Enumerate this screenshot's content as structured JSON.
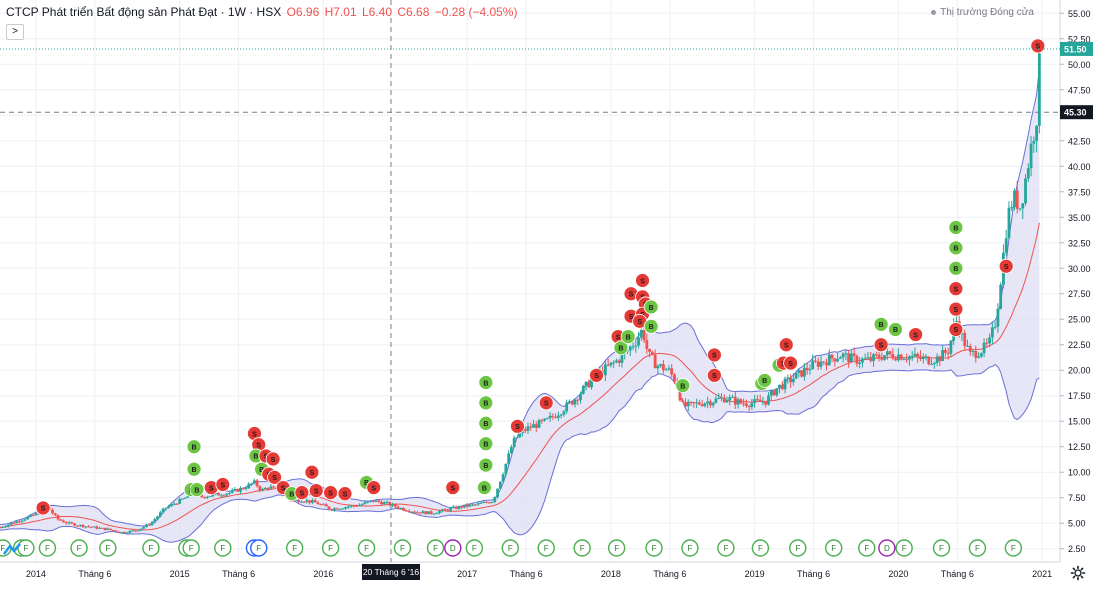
{
  "header": {
    "title": "CTCP Phát triển Bất động sản Phát Đạt · 1W · HSX",
    "open": "O6.96",
    "high": "H7.01",
    "low": "L6.40",
    "close": "C6.68",
    "change": "−0.28 (−4.05%)"
  },
  "market_status": "Thị trường Đóng cửa",
  "toggle_glyph": ">",
  "crosshair_date": "20 Tháng 6 '16",
  "colors": {
    "up": "#26a69a",
    "down": "#ef5350",
    "band_fill": "#dcdcf3",
    "band_line": "#6a6fd8",
    "basis": "#ef5350",
    "grid": "#eef0f3",
    "buy": "#6cc644",
    "sell": "#e53935",
    "price_label": "#26a69a"
  },
  "chart_data": {
    "type": "candlestick",
    "title": "CTCP Phát triển Bất động sản Phát Đạt · 1W · HSX",
    "y_axis": {
      "min": 1.2,
      "max": 56.3,
      "ticks": [
        "2.50",
        "5.00",
        "7.50",
        "10.00",
        "12.50",
        "15.00",
        "17.50",
        "20.00",
        "22.50",
        "25.00",
        "27.50",
        "30.00",
        "32.50",
        "35.00",
        "37.50",
        "40.00",
        "42.50",
        "45.00",
        "47.50",
        "50.00",
        "52.50",
        "55.00"
      ]
    },
    "x_axis": {
      "ticks": [
        {
          "label": "2014",
          "t": 2014.0
        },
        {
          "label": "Tháng 6",
          "t": 2014.41
        },
        {
          "label": "2015",
          "t": 2015.0
        },
        {
          "label": "Tháng 6",
          "t": 2015.41
        },
        {
          "label": "2016",
          "t": 2016.0
        },
        {
          "label": "2017",
          "t": 2017.0
        },
        {
          "label": "Tháng 6",
          "t": 2017.41
        },
        {
          "label": "2018",
          "t": 2018.0
        },
        {
          "label": "Tháng 6",
          "t": 2018.41
        },
        {
          "label": "2019",
          "t": 2019.0
        },
        {
          "label": "Tháng 6",
          "t": 2019.41
        },
        {
          "label": "2020",
          "t": 2020.0
        },
        {
          "label": "Tháng 6",
          "t": 2020.41
        },
        {
          "label": "2021",
          "t": 2021.0
        }
      ],
      "range": [
        2013.75,
        2021.02
      ]
    },
    "price_labels": [
      {
        "value": "51.50",
        "kind": "last"
      },
      {
        "value": "45.30",
        "kind": "crosshair"
      }
    ],
    "price_path": [
      [
        2013.75,
        4.6
      ],
      [
        2013.85,
        5.1
      ],
      [
        2013.95,
        5.6
      ],
      [
        2014.02,
        6.0
      ],
      [
        2014.08,
        6.6
      ],
      [
        2014.15,
        5.4
      ],
      [
        2014.22,
        5.0
      ],
      [
        2014.3,
        4.8
      ],
      [
        2014.4,
        4.6
      ],
      [
        2014.5,
        4.4
      ],
      [
        2014.6,
        4.1
      ],
      [
        2014.7,
        4.3
      ],
      [
        2014.8,
        5.0
      ],
      [
        2014.9,
        6.5
      ],
      [
        2015.0,
        7.2
      ],
      [
        2015.08,
        7.8
      ],
      [
        2015.15,
        7.6
      ],
      [
        2015.25,
        7.8
      ],
      [
        2015.35,
        8.0
      ],
      [
        2015.45,
        8.5
      ],
      [
        2015.52,
        9.0
      ],
      [
        2015.57,
        8.2
      ],
      [
        2015.62,
        8.6
      ],
      [
        2015.7,
        8.0
      ],
      [
        2015.78,
        7.2
      ],
      [
        2015.85,
        7.3
      ],
      [
        2015.95,
        7.0
      ],
      [
        2016.05,
        6.4
      ],
      [
        2016.15,
        6.6
      ],
      [
        2016.25,
        6.8
      ],
      [
        2016.35,
        7.2
      ],
      [
        2016.45,
        6.9
      ],
      [
        2016.55,
        6.4
      ],
      [
        2016.65,
        6.1
      ],
      [
        2016.75,
        6.0
      ],
      [
        2016.85,
        6.3
      ],
      [
        2016.95,
        6.6
      ],
      [
        2017.05,
        6.8
      ],
      [
        2017.12,
        7.0
      ],
      [
        2017.18,
        7.2
      ],
      [
        2017.25,
        10.0
      ],
      [
        2017.32,
        13.0
      ],
      [
        2017.38,
        14.0
      ],
      [
        2017.45,
        14.5
      ],
      [
        2017.55,
        15.0
      ],
      [
        2017.65,
        16.0
      ],
      [
        2017.75,
        17.2
      ],
      [
        2017.85,
        18.8
      ],
      [
        2017.95,
        20.0
      ],
      [
        2018.05,
        21.0
      ],
      [
        2018.12,
        22.0
      ],
      [
        2018.18,
        23.0
      ],
      [
        2018.22,
        24.0
      ],
      [
        2018.26,
        21.5
      ],
      [
        2018.32,
        20.5
      ],
      [
        2018.4,
        20.0
      ],
      [
        2018.45,
        19.0
      ],
      [
        2018.5,
        16.5
      ],
      [
        2018.55,
        16.5
      ],
      [
        2018.62,
        16.8
      ],
      [
        2018.7,
        17.0
      ],
      [
        2018.8,
        17.3
      ],
      [
        2018.9,
        16.8
      ],
      [
        2019.0,
        16.8
      ],
      [
        2019.08,
        17.0
      ],
      [
        2019.15,
        18.2
      ],
      [
        2019.22,
        18.8
      ],
      [
        2019.3,
        19.5
      ],
      [
        2019.4,
        20.5
      ],
      [
        2019.5,
        21.0
      ],
      [
        2019.6,
        21.5
      ],
      [
        2019.7,
        21.0
      ],
      [
        2019.8,
        21.0
      ],
      [
        2019.9,
        21.5
      ],
      [
        2020.0,
        21.5
      ],
      [
        2020.1,
        21.3
      ],
      [
        2020.2,
        21.0
      ],
      [
        2020.28,
        21.2
      ],
      [
        2020.35,
        22.0
      ],
      [
        2020.4,
        25.0
      ],
      [
        2020.45,
        23.0
      ],
      [
        2020.5,
        21.5
      ],
      [
        2020.58,
        22.0
      ],
      [
        2020.63,
        22.5
      ],
      [
        2020.68,
        25.0
      ],
      [
        2020.72,
        30.0
      ],
      [
        2020.76,
        35.0
      ],
      [
        2020.8,
        37.0
      ],
      [
        2020.85,
        36.0
      ],
      [
        2020.9,
        40.0
      ],
      [
        2020.93,
        42.5
      ],
      [
        2020.96,
        44.5
      ],
      [
        2020.985,
        51.0
      ]
    ],
    "indicators": [
      {
        "name": "Bollinger Bands",
        "lines": [
          "upper",
          "basis",
          "lower"
        ]
      }
    ],
    "markers": [
      {
        "type": "S",
        "t": 2014.05,
        "y": 6.5
      },
      {
        "type": "B",
        "t": 2015.08,
        "y": 8.3
      },
      {
        "type": "B",
        "t": 2015.1,
        "y": 10.3
      },
      {
        "type": "B",
        "t": 2015.1,
        "y": 12.5
      },
      {
        "type": "B",
        "t": 2015.12,
        "y": 8.3
      },
      {
        "type": "S",
        "t": 2015.22,
        "y": 8.5
      },
      {
        "type": "S",
        "t": 2015.3,
        "y": 8.8
      },
      {
        "type": "S",
        "t": 2015.52,
        "y": 13.8
      },
      {
        "type": "S",
        "t": 2015.55,
        "y": 12.7
      },
      {
        "type": "B",
        "t": 2015.53,
        "y": 11.6
      },
      {
        "type": "B",
        "t": 2015.57,
        "y": 10.3
      },
      {
        "type": "S",
        "t": 2015.6,
        "y": 11.6
      },
      {
        "type": "S",
        "t": 2015.65,
        "y": 11.3
      },
      {
        "type": "S",
        "t": 2015.62,
        "y": 9.8
      },
      {
        "type": "S",
        "t": 2015.66,
        "y": 9.5
      },
      {
        "type": "S",
        "t": 2015.72,
        "y": 8.5
      },
      {
        "type": "B",
        "t": 2015.78,
        "y": 7.9
      },
      {
        "type": "S",
        "t": 2015.85,
        "y": 8.0
      },
      {
        "type": "S",
        "t": 2015.92,
        "y": 10.0
      },
      {
        "type": "S",
        "t": 2015.95,
        "y": 8.2
      },
      {
        "type": "S",
        "t": 2016.05,
        "y": 8.0
      },
      {
        "type": "S",
        "t": 2016.15,
        "y": 7.9
      },
      {
        "type": "B",
        "t": 2016.3,
        "y": 9.0
      },
      {
        "type": "S",
        "t": 2016.35,
        "y": 8.5
      },
      {
        "type": "S",
        "t": 2016.9,
        "y": 8.5
      },
      {
        "type": "B",
        "t": 2017.12,
        "y": 8.5
      },
      {
        "type": "B",
        "t": 2017.13,
        "y": 10.7
      },
      {
        "type": "B",
        "t": 2017.13,
        "y": 12.8
      },
      {
        "type": "B",
        "t": 2017.13,
        "y": 14.8
      },
      {
        "type": "B",
        "t": 2017.13,
        "y": 16.8
      },
      {
        "type": "B",
        "t": 2017.13,
        "y": 18.8
      },
      {
        "type": "S",
        "t": 2017.35,
        "y": 14.5
      },
      {
        "type": "S",
        "t": 2017.55,
        "y": 16.8
      },
      {
        "type": "S",
        "t": 2017.9,
        "y": 19.5
      },
      {
        "type": "S",
        "t": 2018.05,
        "y": 23.3
      },
      {
        "type": "B",
        "t": 2018.07,
        "y": 22.2
      },
      {
        "type": "B",
        "t": 2018.12,
        "y": 23.3
      },
      {
        "type": "S",
        "t": 2018.14,
        "y": 27.5
      },
      {
        "type": "S",
        "t": 2018.14,
        "y": 25.3
      },
      {
        "type": "S",
        "t": 2018.22,
        "y": 28.8
      },
      {
        "type": "S",
        "t": 2018.22,
        "y": 27.2
      },
      {
        "type": "S",
        "t": 2018.24,
        "y": 26.5
      },
      {
        "type": "S",
        "t": 2018.22,
        "y": 25.5
      },
      {
        "type": "S",
        "t": 2018.2,
        "y": 24.8
      },
      {
        "type": "B",
        "t": 2018.28,
        "y": 26.2
      },
      {
        "type": "B",
        "t": 2018.28,
        "y": 24.3
      },
      {
        "type": "B",
        "t": 2018.5,
        "y": 18.5
      },
      {
        "type": "S",
        "t": 2018.72,
        "y": 21.5
      },
      {
        "type": "S",
        "t": 2018.72,
        "y": 19.5
      },
      {
        "type": "B",
        "t": 2019.05,
        "y": 18.7
      },
      {
        "type": "B",
        "t": 2019.07,
        "y": 19.0
      },
      {
        "type": "B",
        "t": 2019.17,
        "y": 20.5
      },
      {
        "type": "S",
        "t": 2019.22,
        "y": 22.5
      },
      {
        "type": "S",
        "t": 2019.2,
        "y": 20.7
      },
      {
        "type": "S",
        "t": 2019.25,
        "y": 20.7
      },
      {
        "type": "B",
        "t": 2019.88,
        "y": 24.5
      },
      {
        "type": "S",
        "t": 2019.88,
        "y": 22.5
      },
      {
        "type": "B",
        "t": 2019.98,
        "y": 24.0
      },
      {
        "type": "S",
        "t": 2020.12,
        "y": 23.5
      },
      {
        "type": "B",
        "t": 2020.4,
        "y": 34.0
      },
      {
        "type": "B",
        "t": 2020.4,
        "y": 32.0
      },
      {
        "type": "B",
        "t": 2020.4,
        "y": 30.0
      },
      {
        "type": "S",
        "t": 2020.4,
        "y": 28.0
      },
      {
        "type": "S",
        "t": 2020.4,
        "y": 26.0
      },
      {
        "type": "S",
        "t": 2020.4,
        "y": 24.0
      },
      {
        "type": "S",
        "t": 2020.75,
        "y": 30.2
      },
      {
        "type": "S",
        "t": 2020.97,
        "y": 51.8
      }
    ],
    "events": [
      {
        "label": "F",
        "t": 2013.77
      },
      {
        "label": "F",
        "t": 2013.9
      },
      {
        "label": "F",
        "t": 2013.93
      },
      {
        "label": "F",
        "t": 2014.08
      },
      {
        "label": "F",
        "t": 2014.3
      },
      {
        "label": "F",
        "t": 2014.5
      },
      {
        "label": "F",
        "t": 2014.8
      },
      {
        "label": "F",
        "t": 2015.05
      },
      {
        "label": "F",
        "t": 2015.08
      },
      {
        "label": "F",
        "t": 2015.3
      },
      {
        "label": "F",
        "t": 2015.52,
        "ring": "blue"
      },
      {
        "label": "F",
        "t": 2015.55,
        "ring": "blue"
      },
      {
        "label": "F",
        "t": 2015.8
      },
      {
        "label": "F",
        "t": 2016.05
      },
      {
        "label": "F",
        "t": 2016.3
      },
      {
        "label": "F",
        "t": 2016.55
      },
      {
        "label": "F",
        "t": 2016.78
      },
      {
        "label": "D",
        "t": 2016.9,
        "ring": "purple"
      },
      {
        "label": "F",
        "t": 2017.05
      },
      {
        "label": "F",
        "t": 2017.3
      },
      {
        "label": "F",
        "t": 2017.55
      },
      {
        "label": "F",
        "t": 2017.8
      },
      {
        "label": "F",
        "t": 2018.04
      },
      {
        "label": "F",
        "t": 2018.3
      },
      {
        "label": "F",
        "t": 2018.55
      },
      {
        "label": "F",
        "t": 2018.8
      },
      {
        "label": "F",
        "t": 2019.04
      },
      {
        "label": "F",
        "t": 2019.3
      },
      {
        "label": "F",
        "t": 2019.55
      },
      {
        "label": "F",
        "t": 2019.78
      },
      {
        "label": "D",
        "t": 2019.92,
        "ring": "purple"
      },
      {
        "label": "F",
        "t": 2020.04
      },
      {
        "label": "F",
        "t": 2020.3
      },
      {
        "label": "F",
        "t": 2020.55
      },
      {
        "label": "F",
        "t": 2020.8
      }
    ],
    "grid": true,
    "legend": "none"
  }
}
